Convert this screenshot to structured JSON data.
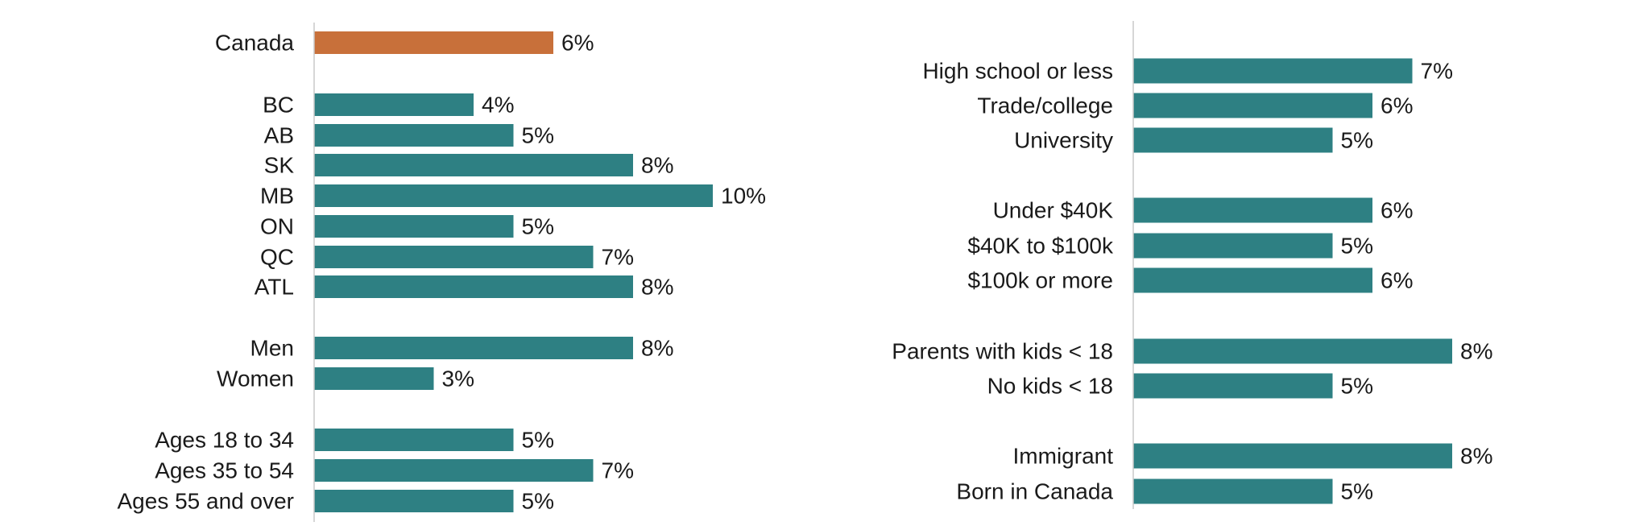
{
  "chart_data": [
    {
      "type": "bar",
      "orientation": "horizontal",
      "xlim": [
        0,
        10
      ],
      "grid": false,
      "legend": "none",
      "colors": {
        "highlight": "#C8703A",
        "bar": "#2E8083",
        "axis": "#C8C8C8"
      },
      "groups": [
        {
          "categories": [
            {
              "label": "Canada",
              "value": 6,
              "value_label": "6%",
              "highlight": true
            }
          ]
        },
        {
          "categories": [
            {
              "label": "BC",
              "value": 4,
              "value_label": "4%"
            },
            {
              "label": "AB",
              "value": 5,
              "value_label": "5%"
            },
            {
              "label": "SK",
              "value": 8,
              "value_label": "8%"
            },
            {
              "label": "MB",
              "value": 10,
              "value_label": "10%"
            },
            {
              "label": "ON",
              "value": 5,
              "value_label": "5%"
            },
            {
              "label": "QC",
              "value": 7,
              "value_label": "7%"
            },
            {
              "label": "ATL",
              "value": 8,
              "value_label": "8%"
            }
          ]
        },
        {
          "categories": [
            {
              "label": "Men",
              "value": 8,
              "value_label": "8%"
            },
            {
              "label": "Women",
              "value": 3,
              "value_label": "3%"
            }
          ]
        },
        {
          "categories": [
            {
              "label": "Ages 18 to 34",
              "value": 5,
              "value_label": "5%"
            },
            {
              "label": "Ages 35 to 54",
              "value": 7,
              "value_label": "7%"
            },
            {
              "label": "Ages 55 and over",
              "value": 5,
              "value_label": "5%"
            }
          ]
        }
      ]
    },
    {
      "type": "bar",
      "orientation": "horizontal",
      "xlim": [
        0,
        10
      ],
      "grid": false,
      "legend": "none",
      "colors": {
        "bar": "#2E8083",
        "axis": "#C8C8C8"
      },
      "groups": [
        {
          "categories": [
            {
              "label": "High school or less",
              "value": 7,
              "value_label": "7%"
            },
            {
              "label": "Trade/college",
              "value": 6,
              "value_label": "6%"
            },
            {
              "label": "University",
              "value": 5,
              "value_label": "5%"
            }
          ]
        },
        {
          "categories": [
            {
              "label": "Under $40K",
              "value": 6,
              "value_label": "6%"
            },
            {
              "label": "$40K to $100k",
              "value": 5,
              "value_label": "5%"
            },
            {
              "label": "$100k or more",
              "value": 6,
              "value_label": "6%"
            }
          ]
        },
        {
          "categories": [
            {
              "label": "Parents with kids < 18",
              "value": 8,
              "value_label": "8%"
            },
            {
              "label": "No kids < 18",
              "value": 5,
              "value_label": "5%"
            }
          ]
        },
        {
          "categories": [
            {
              "label": "Immigrant",
              "value": 8,
              "value_label": "8%"
            },
            {
              "label": "Born in Canada",
              "value": 5,
              "value_label": "5%"
            }
          ]
        }
      ]
    }
  ]
}
